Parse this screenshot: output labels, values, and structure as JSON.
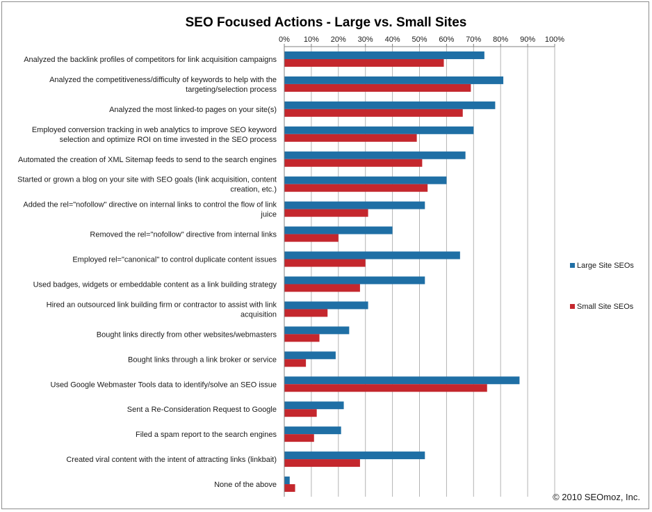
{
  "chart_data": {
    "type": "bar",
    "orientation": "horizontal",
    "title": "SEO Focused Actions - Large vs. Small Sites",
    "xlim": [
      0,
      100
    ],
    "x_ticks": [
      "0%",
      "10%",
      "20%",
      "30%",
      "40%",
      "50%",
      "60%",
      "70%",
      "80%",
      "90%",
      "100%"
    ],
    "grid": "vertical",
    "legend_position": "right",
    "colors": {
      "large": "#1f6fa5",
      "small": "#c4272d"
    },
    "categories": [
      [
        "Analyzed the backlink profiles of competitors for link acquisition campaigns"
      ],
      [
        "Analyzed the competitiveness/difficulty of keywords to help with the",
        "targeting/selection process"
      ],
      [
        "Analyzed the most linked-to pages on your site(s)"
      ],
      [
        "Employed conversion tracking in web analytics to improve SEO keyword",
        "selection and optimize ROI on time invested in the SEO process"
      ],
      [
        "Automated the creation of XML Sitemap feeds to send to the search engines"
      ],
      [
        "Started or grown a blog on your site with SEO goals (link acquisition, content",
        "creation, etc.)"
      ],
      [
        "Added the rel=\"nofollow\" directive on internal links to control the flow of link",
        "juice"
      ],
      [
        "Removed the rel=\"nofollow\" directive from internal links"
      ],
      [
        "Employed rel=\"canonical\" to control duplicate content issues"
      ],
      [
        "Used badges, widgets or embeddable content as a link building strategy"
      ],
      [
        "Hired an outsourced link building firm or contractor to assist with link",
        "acquisition"
      ],
      [
        "Bought links directly from other websites/webmasters"
      ],
      [
        "Bought links through a link broker or service"
      ],
      [
        "Used Google Webmaster Tools data to identify/solve an SEO issue"
      ],
      [
        "Sent a Re-Consideration Request to Google"
      ],
      [
        "Filed a spam report to the search engines"
      ],
      [
        "Created viral content with the intent of attracting links (linkbait)"
      ],
      [
        "None of the above"
      ]
    ],
    "series": [
      {
        "name": "Large Site SEOs",
        "values": [
          74,
          81,
          78,
          70,
          67,
          60,
          52,
          40,
          65,
          52,
          31,
          24,
          19,
          87,
          22,
          21,
          52,
          2
        ]
      },
      {
        "name": "Small Site SEOs",
        "values": [
          59,
          69,
          66,
          49,
          51,
          53,
          31,
          20,
          30,
          28,
          16,
          13,
          8,
          75,
          12,
          11,
          28,
          4
        ]
      }
    ],
    "copyright": "© 2010 SEOmoz,  Inc."
  }
}
